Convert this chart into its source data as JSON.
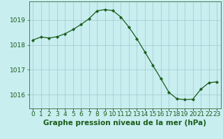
{
  "x": [
    0,
    1,
    2,
    3,
    4,
    5,
    6,
    7,
    8,
    9,
    10,
    11,
    12,
    13,
    14,
    15,
    16,
    17,
    18,
    19,
    20,
    21,
    22,
    23
  ],
  "y": [
    1018.2,
    1018.32,
    1018.28,
    1018.33,
    1018.45,
    1018.62,
    1018.82,
    1019.05,
    1019.37,
    1019.42,
    1019.38,
    1019.12,
    1018.72,
    1018.25,
    1017.72,
    1017.18,
    1016.65,
    1016.1,
    1015.84,
    1015.8,
    1015.82,
    1016.22,
    1016.48,
    1016.52
  ],
  "line_color": "#1a5c1a",
  "marker": "D",
  "marker_size": 2.2,
  "bg_color": "#c8eef0",
  "grid_color": "#a0c8d0",
  "ylabel_ticks": [
    1016,
    1017,
    1018,
    1019
  ],
  "xlabel_label": "Graphe pression niveau de la mer (hPa)",
  "xlabel_color": "#1a5c1a",
  "ylim": [
    1015.45,
    1019.75
  ],
  "xlim": [
    -0.5,
    23.5
  ],
  "spine_color": "#507850",
  "tick_fontsize": 6.5,
  "xlabel_fontsize": 7.5,
  "xlabel_fontweight": "bold"
}
